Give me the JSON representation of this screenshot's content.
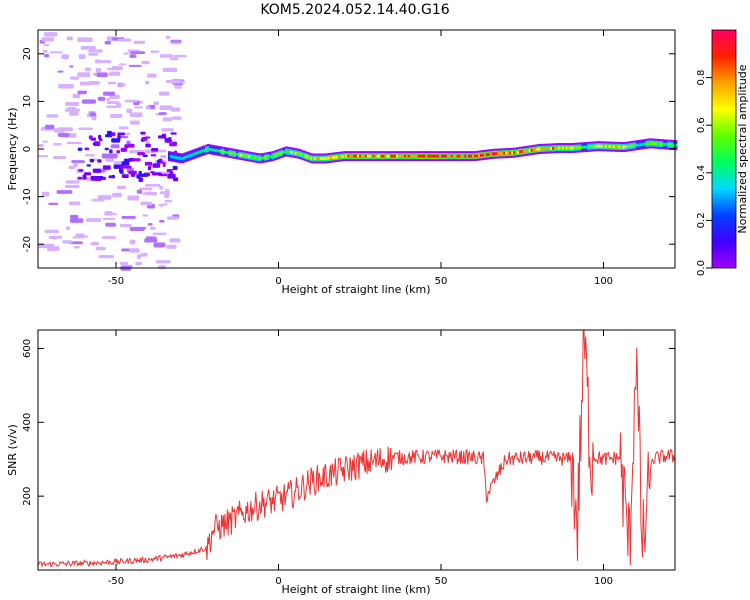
{
  "title": "KOM5.2024.052.14.40.G16",
  "chart_data": [
    {
      "type": "heatmap",
      "xlabel": "Height of straight line (km)",
      "ylabel": "Frequency (Hz)",
      "xlim": [
        -74,
        122
      ],
      "ylim": [
        -25,
        25
      ],
      "xticks": [
        -50,
        0,
        50,
        100
      ],
      "yticks": [
        -20,
        -10,
        0,
        10,
        20
      ],
      "colorbar": {
        "label": "Normalized spectral amplitude",
        "ticks": [
          "0.0",
          "0.2",
          "0.4",
          "0.6",
          "0.8"
        ],
        "range": [
          0,
          1
        ],
        "colormap": [
          "#a000ff",
          "#4000ff",
          "#0040ff",
          "#00d8ff",
          "#00ff60",
          "#60ff00",
          "#ffff00",
          "#ffa000",
          "#ff2000",
          "#ff0060"
        ]
      },
      "ridge": {
        "x": [
          -34,
          -30,
          -26,
          -22,
          -18,
          -14,
          -10,
          -6,
          -2,
          2,
          6,
          10,
          14,
          20,
          30,
          40,
          50,
          60,
          66,
          72,
          80,
          86,
          90,
          94,
          98,
          102,
          106,
          110,
          114,
          118,
          122
        ],
        "y": [
          -1.5,
          -2.0,
          -1.0,
          0.0,
          -0.5,
          -1.0,
          -1.5,
          -2.0,
          -1.5,
          -0.5,
          -1.0,
          -2.0,
          -2.0,
          -1.5,
          -1.5,
          -1.5,
          -1.5,
          -1.5,
          -1.0,
          -0.8,
          0.0,
          0.2,
          0.2,
          0.4,
          0.6,
          0.5,
          0.4,
          0.8,
          1.2,
          1.0,
          0.8
        ],
        "amplitude": [
          0.3,
          0.35,
          0.4,
          0.45,
          0.5,
          0.55,
          0.6,
          0.55,
          0.5,
          0.55,
          0.6,
          0.65,
          0.75,
          0.8,
          0.85,
          0.9,
          0.9,
          0.92,
          0.95,
          0.85,
          0.8,
          0.75,
          0.7,
          0.4,
          0.7,
          0.85,
          0.7,
          0.4,
          0.5,
          0.55,
          0.45
        ]
      }
    },
    {
      "type": "line",
      "xlabel": "Height of straight line (km)",
      "ylabel": "SNR (v/v)",
      "xlim": [
        -74,
        122
      ],
      "ylim": [
        0,
        650
      ],
      "xticks": [
        -50,
        0,
        50,
        100
      ],
      "yticks": [
        200,
        400,
        600
      ],
      "color": "#ee3333",
      "series": [
        {
          "x": [
            -74,
            -60,
            -50,
            -40,
            -30,
            -22,
            -20,
            -15,
            -10,
            -5,
            0,
            5,
            10,
            15,
            20,
            25,
            30,
            35,
            40,
            50,
            60,
            63,
            64,
            70,
            80,
            90,
            92,
            94,
            96,
            100,
            105,
            108,
            110,
            112,
            115,
            120,
            122
          ],
          "y": [
            15,
            18,
            22,
            28,
            40,
            60,
            110,
            130,
            160,
            180,
            190,
            210,
            240,
            255,
            270,
            285,
            295,
            305,
            305,
            308,
            305,
            300,
            200,
            300,
            305,
            300,
            120,
            640,
            310,
            300,
            305,
            60,
            590,
            50,
            300,
            310,
            305
          ]
        }
      ]
    }
  ]
}
